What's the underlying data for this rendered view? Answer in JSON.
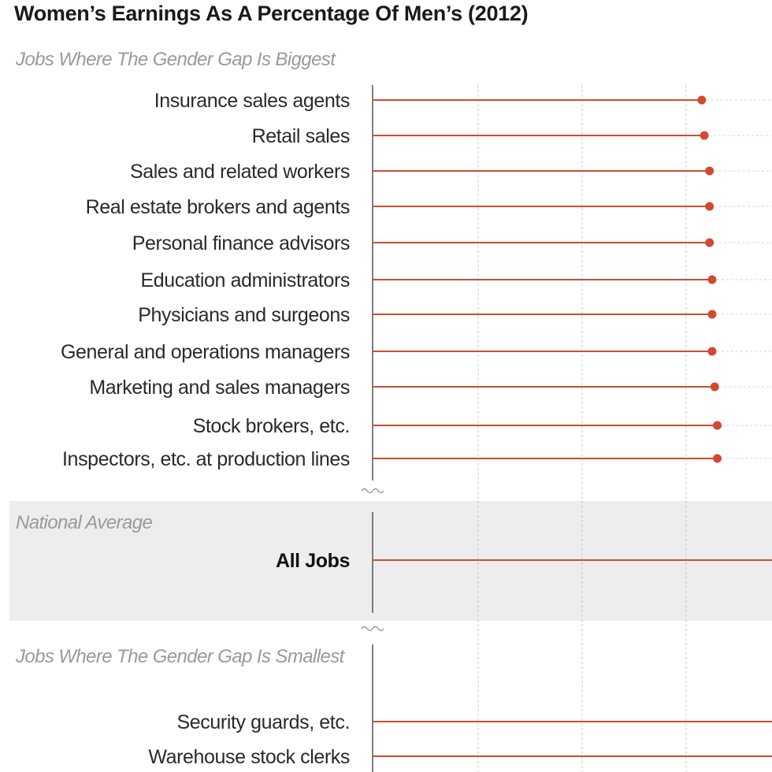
{
  "chart_data": {
    "type": "lollipop",
    "title": "Women’s Earnings As A Percentage Of Men’s (2012)",
    "colors": {
      "accent": "#d14a30",
      "grid": "#c8c8c8",
      "band": "#ededed"
    },
    "grid": true,
    "sections": [
      {
        "label": "Jobs Where The Gender Gap Is Biggest",
        "rows": [
          {
            "label": "Insurance sales agents",
            "value": 63.3
          },
          {
            "label": "Retail sales",
            "value": 63.8
          },
          {
            "label": "Sales and related workers",
            "value": 64.8
          },
          {
            "label": "Real estate brokers and agents",
            "value": 64.8
          },
          {
            "label": "Personal finance advisors",
            "value": 64.8
          },
          {
            "label": "Education administrators",
            "value": 65.3
          },
          {
            "label": "Physicians and surgeons",
            "value": 65.3
          },
          {
            "label": "General and operations managers",
            "value": 65.3
          },
          {
            "label": "Marketing and sales managers",
            "value": 65.8
          },
          {
            "label": "Stock brokers, etc.",
            "value": 66.3
          },
          {
            "label": "Inspectors, etc. at production lines",
            "value": 66.3
          }
        ]
      },
      {
        "label": "National Average",
        "rows": [
          {
            "label": "All Jobs",
            "value": 80.9,
            "bold": true
          }
        ]
      },
      {
        "label": "Jobs Where The Gender Gap Is Smallest",
        "rows": [
          {
            "label": "Security guards, etc.",
            "value": 90
          },
          {
            "label": "Warehouse stock clerks",
            "value": 90
          }
        ]
      }
    ]
  }
}
